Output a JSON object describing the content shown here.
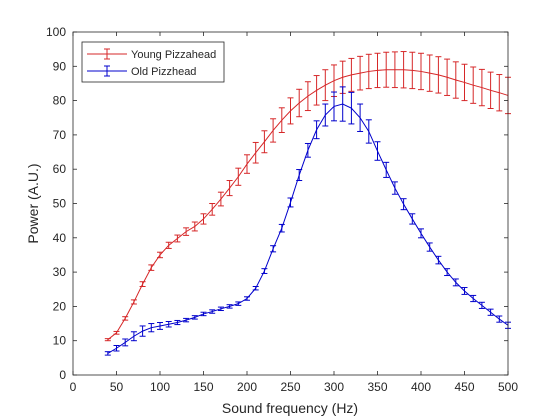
{
  "chart_data": {
    "type": "line",
    "xlabel": "Sound frequency (Hz)",
    "ylabel": "Power (A.U.)",
    "xlim": [
      0,
      500
    ],
    "ylim": [
      0,
      100
    ],
    "xticks": [
      0,
      50,
      100,
      150,
      200,
      250,
      300,
      350,
      400,
      450,
      500
    ],
    "yticks": [
      0,
      10,
      20,
      30,
      40,
      50,
      60,
      70,
      80,
      90,
      100
    ],
    "grid": false,
    "legend_position": "top-left",
    "x": [
      40,
      50,
      60,
      70,
      80,
      90,
      100,
      110,
      120,
      130,
      140,
      150,
      160,
      170,
      180,
      190,
      200,
      210,
      220,
      230,
      240,
      250,
      260,
      270,
      280,
      290,
      300,
      310,
      320,
      330,
      340,
      350,
      360,
      370,
      380,
      390,
      400,
      410,
      420,
      430,
      440,
      450,
      460,
      470,
      480,
      490,
      500
    ],
    "series": [
      {
        "name": "Young Pizzahead",
        "color": "#d62728",
        "values": [
          10.3,
          12.3,
          16.5,
          21.3,
          26.5,
          31.3,
          35,
          37.8,
          39.8,
          41.8,
          43.3,
          45.5,
          48.3,
          51.3,
          54.5,
          57.8,
          61.5,
          64.8,
          68,
          71.3,
          74.3,
          77,
          79.3,
          81.3,
          83,
          84.5,
          85.8,
          86.8,
          87.5,
          88,
          88.5,
          88.8,
          89,
          89,
          89,
          88.8,
          88.5,
          88,
          87.5,
          86.8,
          86,
          85.3,
          84.5,
          83.8,
          83,
          82.3,
          81.5
        ],
        "errors": [
          0.3,
          0.4,
          0.5,
          0.6,
          0.7,
          0.8,
          0.8,
          0.9,
          1.0,
          1.1,
          1.3,
          1.5,
          1.7,
          2.0,
          2.2,
          2.5,
          2.7,
          3.0,
          3.2,
          3.4,
          3.6,
          3.8,
          4.0,
          4.2,
          4.3,
          4.5,
          4.6,
          4.7,
          4.8,
          4.9,
          5.0,
          5.0,
          5.1,
          5.2,
          5.3,
          5.3,
          5.3,
          5.3,
          5.3,
          5.3,
          5.3,
          5.3,
          5.3,
          5.3,
          5.3,
          5.3,
          5.3
        ]
      },
      {
        "name": "Old Pizzhead",
        "color": "#0000cc",
        "values": [
          6.3,
          7.8,
          9.5,
          11.3,
          12.8,
          13.8,
          14.3,
          14.8,
          15.3,
          16,
          16.8,
          17.8,
          18.5,
          19.3,
          20,
          20.8,
          22.3,
          25.3,
          30.3,
          36.8,
          42.8,
          50.3,
          58.3,
          65.5,
          71.5,
          75.8,
          78.3,
          79,
          77.8,
          75,
          71,
          65.3,
          59.8,
          54.5,
          49.8,
          45.5,
          41.3,
          37.3,
          33.5,
          30,
          27,
          24.5,
          22.3,
          20.3,
          18.3,
          16.3,
          14.5
        ],
        "errors": [
          0.5,
          0.8,
          1.0,
          1.3,
          1.5,
          1.2,
          1.0,
          0.8,
          0.6,
          0.5,
          0.5,
          0.5,
          0.5,
          0.5,
          0.5,
          0.5,
          0.5,
          0.5,
          0.7,
          0.9,
          1.1,
          1.3,
          1.6,
          2.0,
          2.6,
          3.2,
          4.2,
          5.0,
          4.6,
          4.0,
          3.4,
          2.7,
          2.2,
          1.8,
          1.6,
          1.5,
          1.3,
          1.2,
          1.1,
          1.0,
          1.0,
          1.0,
          0.9,
          0.9,
          0.9,
          0.9,
          0.9
        ]
      }
    ]
  }
}
